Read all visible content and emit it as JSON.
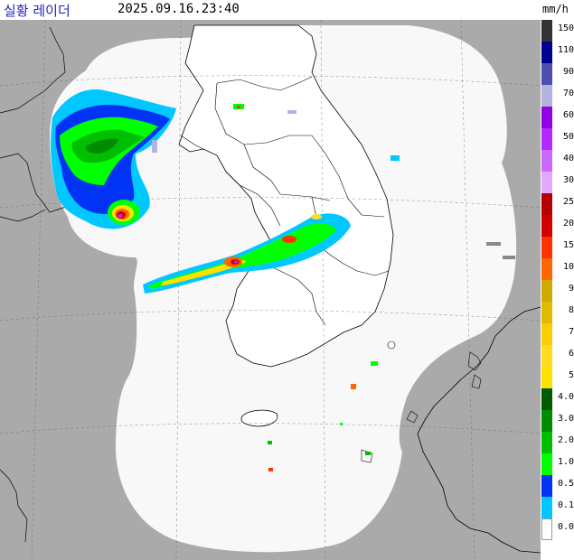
{
  "header": {
    "title": "실황 레이더",
    "timestamp": "2025.09.16.23:40",
    "unit": "mm/h"
  },
  "map": {
    "land_color": "#ffffff",
    "outside_coverage_color": "#aaaaaa",
    "coverage_color": "#f8f8f8",
    "boundary_color": "#000000"
  },
  "legend": {
    "items": [
      {
        "label": "150",
        "color": "#333333"
      },
      {
        "label": "110",
        "color": "#000390"
      },
      {
        "label": "90",
        "color": "#4c4eb1"
      },
      {
        "label": "70",
        "color": "#b3b4de"
      },
      {
        "label": "60",
        "color": "#9300e4"
      },
      {
        "label": "50",
        "color": "#b329ff"
      },
      {
        "label": "40",
        "color": "#c969ff"
      },
      {
        "label": "30",
        "color": "#e0a9ff"
      },
      {
        "label": "25",
        "color": "#b40000"
      },
      {
        "label": "20",
        "color": "#d20000"
      },
      {
        "label": "15",
        "color": "#ff3200"
      },
      {
        "label": "10",
        "color": "#ff6600"
      },
      {
        "label": "9",
        "color": "#ccaa00"
      },
      {
        "label": "8",
        "color": "#e0b900"
      },
      {
        "label": "7",
        "color": "#f9cd00"
      },
      {
        "label": "6",
        "color": "#ffdc1f"
      },
      {
        "label": "5",
        "color": "#ffe100"
      },
      {
        "label": "4.0",
        "color": "#005a00"
      },
      {
        "label": "3.0",
        "color": "#008c00"
      },
      {
        "label": "2.0",
        "color": "#00be00"
      },
      {
        "label": "1.0",
        "color": "#00ff00"
      },
      {
        "label": "0.5",
        "color": "#0033f5"
      },
      {
        "label": "0.1",
        "color": "#00c8ff"
      },
      {
        "label": "0.0",
        "color": "#ffffff"
      }
    ]
  }
}
